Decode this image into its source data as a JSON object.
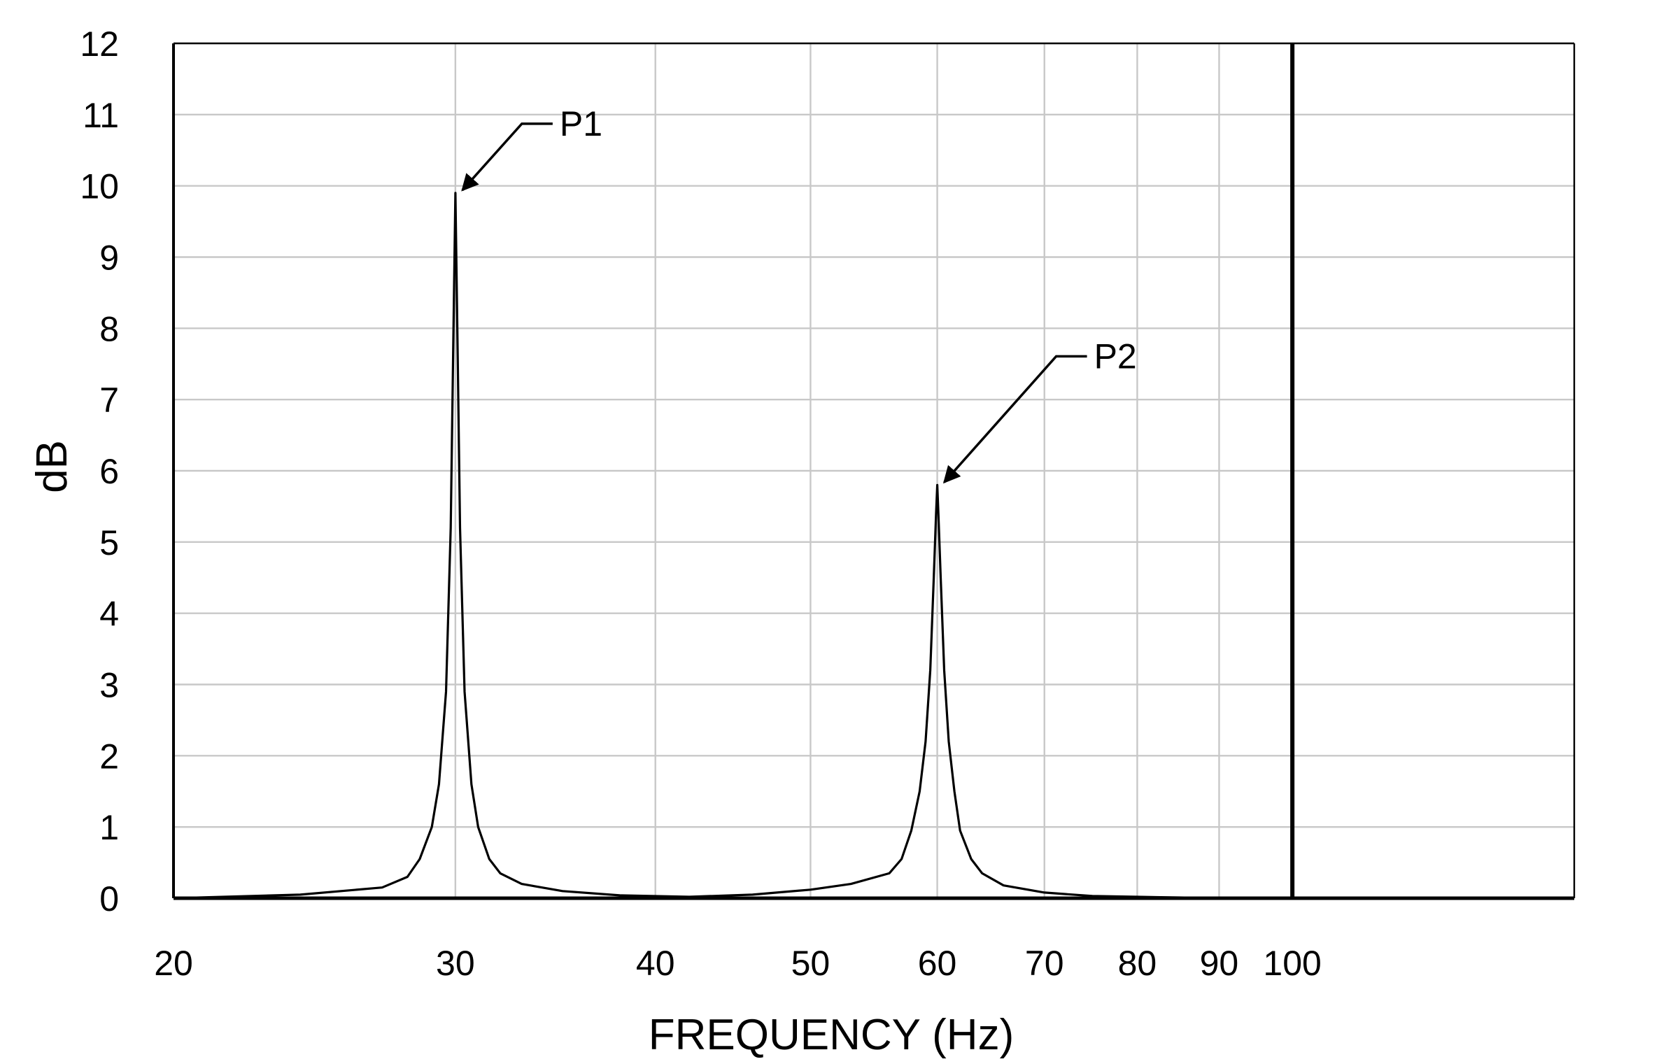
{
  "chart_data": {
    "type": "line",
    "title": "",
    "xlabel": "FREQUENCY (Hz)",
    "ylabel": "dB",
    "x_scale": "log",
    "xlim": [
      20,
      150
    ],
    "ylim": [
      0,
      12
    ],
    "x_ticks": [
      20,
      30,
      40,
      50,
      60,
      70,
      80,
      90,
      100
    ],
    "x_tick_labels": [
      "20",
      "30",
      "40",
      "50",
      "60",
      "70",
      "80",
      "90",
      "100"
    ],
    "y_ticks": [
      0,
      1,
      2,
      3,
      4,
      5,
      6,
      7,
      8,
      9,
      10,
      11,
      12
    ],
    "y_tick_labels": [
      "0",
      "1",
      "2",
      "3",
      "4",
      "5",
      "6",
      "7",
      "8",
      "9",
      "10",
      "11",
      "12"
    ],
    "grid": true,
    "reference_line_x": 100,
    "peaks": [
      {
        "label": "P1",
        "x": 30,
        "y": 9.9
      },
      {
        "label": "P2",
        "x": 60,
        "y": 5.8
      }
    ],
    "series": [
      {
        "x": [
          20,
          24,
          27,
          28,
          28.5,
          29,
          29.3,
          29.6,
          29.8,
          29.9,
          30,
          30.1,
          30.2,
          30.4,
          30.7,
          31,
          31.5,
          32,
          33,
          35,
          38,
          42,
          46,
          50,
          53,
          56,
          57,
          57.8,
          58.5,
          59,
          59.4,
          59.7,
          59.9,
          60,
          60.1,
          60.3,
          60.6,
          61,
          61.5,
          62,
          63,
          64,
          66,
          70,
          75,
          80,
          85,
          90,
          95,
          100,
          120,
          150
        ],
        "y": [
          0.0,
          0.05,
          0.15,
          0.3,
          0.55,
          1.0,
          1.6,
          2.9,
          5.2,
          7.6,
          9.9,
          7.6,
          5.2,
          2.9,
          1.6,
          1.0,
          0.55,
          0.35,
          0.2,
          0.1,
          0.04,
          0.02,
          0.05,
          0.12,
          0.2,
          0.35,
          0.55,
          0.95,
          1.5,
          2.2,
          3.2,
          4.5,
          5.4,
          5.8,
          5.4,
          4.5,
          3.2,
          2.2,
          1.5,
          0.95,
          0.55,
          0.35,
          0.18,
          0.08,
          0.03,
          0.02,
          0.01,
          0.0,
          0.0,
          0.0,
          0.0,
          0.0
        ]
      }
    ]
  }
}
